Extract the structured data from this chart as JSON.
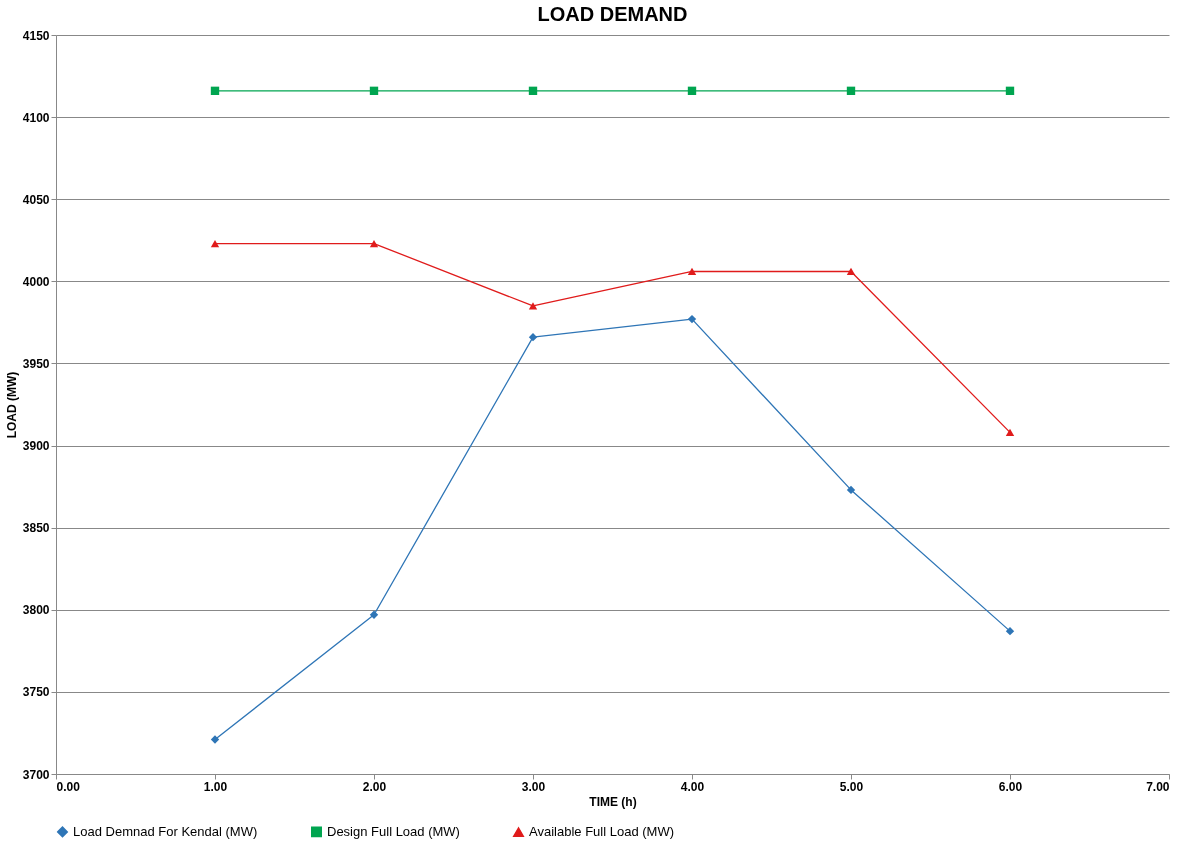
{
  "chart_data": {
    "type": "line",
    "title": "LOAD DEMAND",
    "xlabel": "TIME  (h)",
    "ylabel": "LOAD (MW)",
    "x": [
      1,
      2,
      3,
      4,
      5,
      6
    ],
    "series": [
      {
        "name": "Load Demnad For Kendal (MW)",
        "color": "#2e75b6",
        "marker": "diamond",
        "values": [
          3721,
          3797,
          3966,
          3977,
          3873,
          3787
        ]
      },
      {
        "name": "Design Full Load (MW)",
        "color": "#00a550",
        "marker": "square",
        "values": [
          4116,
          4116,
          4116,
          4116,
          4116,
          4116
        ]
      },
      {
        "name": "Available Full Load (MW)",
        "color": "#e01b1b",
        "marker": "triangle",
        "values": [
          4023,
          4023,
          3985,
          4006,
          4006,
          3908
        ]
      }
    ],
    "xlim": [
      0,
      7
    ],
    "xticks": [
      {
        "value": 0,
        "label": "0.00"
      },
      {
        "value": 1,
        "label": "1.00"
      },
      {
        "value": 2,
        "label": "2.00"
      },
      {
        "value": 3,
        "label": "3.00"
      },
      {
        "value": 4,
        "label": "4.00"
      },
      {
        "value": 5,
        "label": "5.00"
      },
      {
        "value": 6,
        "label": "6.00"
      },
      {
        "value": 7,
        "label": "7.00"
      }
    ],
    "ylim": [
      3700,
      4150
    ],
    "yticks": [
      3700,
      3750,
      3800,
      3850,
      3900,
      3950,
      4000,
      4050,
      4100,
      4150
    ],
    "grid": "y",
    "legend": "bottom",
    "line_style": "solid"
  }
}
